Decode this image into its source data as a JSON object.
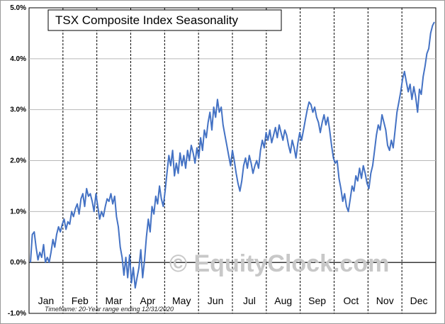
{
  "chart_data": {
    "type": "line",
    "title": "TSX Composite Index Seasonality",
    "footnote": "Timeframe: 20-Year range ending 12/31/2020",
    "watermark": "© EquityClock.com",
    "ylim": [
      -1.0,
      5.0
    ],
    "yticks": [
      "-1.0%",
      "0.0%",
      "1.0%",
      "2.0%",
      "3.0%",
      "4.0%",
      "5.0%"
    ],
    "months": [
      "Jan",
      "Feb",
      "Mar",
      "Apr",
      "May",
      "Jun",
      "Jul",
      "Aug",
      "Sep",
      "Oct",
      "Nov",
      "Dec"
    ],
    "grid": true,
    "line_color": "#4472c4",
    "series": [
      {
        "values": [
          0.0,
          0.55,
          0.6,
          0.3,
          0.05,
          0.2,
          0.1,
          0.35,
          0.0,
          0.1,
          0.0,
          0.2,
          0.45,
          0.3,
          0.55,
          0.7,
          0.6,
          0.75,
          0.85,
          0.65,
          0.8,
          0.75,
          1.0,
          0.9,
          1.05,
          1.15,
          0.95,
          1.25,
          1.35,
          1.1,
          1.45,
          1.3,
          1.35,
          1.2,
          1.0,
          1.35,
          1.1,
          0.85,
          1.0,
          0.9,
          1.1,
          1.25,
          1.2,
          1.35,
          1.15,
          1.3,
          0.9,
          0.7,
          0.3,
          0.1,
          -0.25,
          0.1,
          -0.3,
          0.15,
          -0.4,
          -0.1,
          -0.5,
          -0.3,
          -0.1,
          0.25,
          -0.3,
          0.05,
          0.5,
          0.85,
          0.6,
          1.1,
          0.95,
          1.3,
          1.15,
          1.5,
          1.25,
          1.1,
          1.4,
          1.75,
          2.1,
          1.9,
          2.2,
          1.7,
          1.95,
          1.75,
          2.15,
          1.9,
          2.1,
          1.85,
          2.2,
          2.0,
          2.3,
          2.15,
          1.95,
          2.25,
          2.05,
          2.45,
          2.2,
          2.6,
          2.45,
          2.75,
          2.95,
          2.6,
          3.05,
          2.85,
          3.2,
          2.95,
          3.05,
          2.7,
          2.5,
          2.3,
          2.1,
          1.9,
          2.2,
          2.0,
          1.75,
          1.55,
          1.4,
          1.6,
          1.9,
          2.05,
          1.85,
          2.1,
          1.95,
          1.75,
          1.9,
          2.0,
          1.85,
          2.2,
          2.4,
          2.25,
          2.55,
          2.4,
          2.6,
          2.35,
          2.5,
          2.65,
          2.45,
          2.7,
          2.55,
          2.4,
          2.6,
          2.5,
          2.3,
          2.15,
          2.4,
          2.25,
          2.05,
          2.35,
          2.55,
          2.4,
          2.6,
          2.8,
          3.0,
          3.15,
          3.1,
          2.95,
          3.05,
          2.85,
          2.75,
          2.55,
          2.75,
          2.9,
          2.7,
          2.85,
          2.6,
          2.3,
          2.05,
          1.95,
          2.0,
          1.65,
          1.45,
          1.2,
          1.35,
          1.1,
          1.0,
          1.25,
          1.5,
          1.4,
          1.7,
          1.6,
          1.85,
          1.65,
          1.9,
          1.75,
          1.55,
          1.45,
          1.75,
          1.9,
          2.2,
          2.5,
          2.7,
          2.6,
          2.9,
          2.75,
          2.6,
          2.3,
          2.2,
          2.4,
          2.25,
          2.6,
          2.95,
          3.15,
          3.35,
          3.6,
          3.75,
          3.55,
          3.35,
          3.5,
          3.2,
          3.45,
          3.25,
          2.95,
          3.4,
          3.3,
          3.65,
          3.85,
          4.1,
          4.2,
          4.5,
          4.65,
          4.72
        ]
      }
    ]
  }
}
